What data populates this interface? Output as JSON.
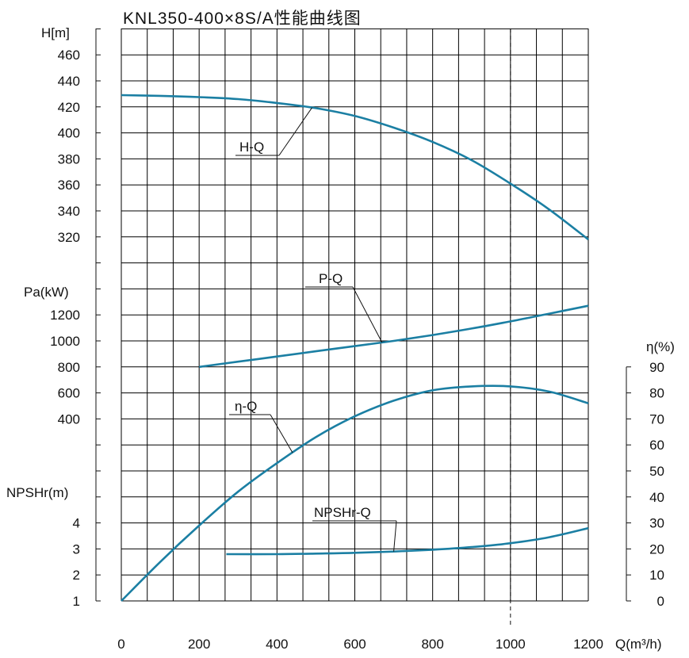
{
  "chart_data": {
    "type": "line",
    "title": "KNL350-400×8S/A性能曲线图",
    "grid": true,
    "curve_color": "#1b7fa3",
    "x": {
      "label": "Q(m³/h)",
      "range": [
        0,
        1200
      ],
      "ticks": [
        "0",
        "200",
        "400",
        "600",
        "800",
        "1000",
        "1200"
      ],
      "reference_line": 1000
    },
    "axes": {
      "head": {
        "label": "H[m]",
        "ticks": [
          "320",
          "340",
          "360",
          "380",
          "400",
          "420",
          "440",
          "460"
        ],
        "range": [
          320,
          460
        ]
      },
      "power": {
        "label": "Pa(kW)",
        "ticks": [
          "400",
          "600",
          "800",
          "1000",
          "1200"
        ],
        "range": [
          400,
          1200
        ]
      },
      "npsh": {
        "label": "NPSHr(m)",
        "ticks": [
          "1",
          "2",
          "3",
          "4"
        ],
        "range": [
          1,
          4
        ]
      },
      "efficiency": {
        "label": "η(%)",
        "ticks": [
          "0",
          "10",
          "20",
          "30",
          "40",
          "50",
          "60",
          "70",
          "80",
          "90"
        ],
        "range": [
          0,
          90
        ]
      }
    },
    "series": [
      {
        "name": "H-Q",
        "axis": "head",
        "x": [
          0,
          100,
          200,
          300,
          400,
          500,
          600,
          700,
          800,
          900,
          1000,
          1100,
          1200
        ],
        "y": [
          429,
          428.5,
          427.5,
          426,
          423,
          419,
          413,
          404,
          393,
          379,
          361,
          341,
          318
        ]
      },
      {
        "name": "P-Q",
        "axis": "power",
        "x": [
          200,
          300,
          400,
          500,
          600,
          700,
          800,
          900,
          1000,
          1100,
          1200
        ],
        "y": [
          800,
          840,
          880,
          920,
          960,
          1000,
          1045,
          1095,
          1150,
          1210,
          1270
        ]
      },
      {
        "name": "η-Q",
        "axis": "efficiency",
        "x": [
          0,
          100,
          200,
          300,
          400,
          500,
          600,
          700,
          800,
          900,
          1000,
          1100,
          1200
        ],
        "y": [
          0,
          15,
          29,
          42,
          53,
          63,
          71,
          77,
          81,
          82.5,
          82.5,
          80.5,
          76
        ]
      },
      {
        "name": "NPSHr-Q",
        "axis": "npsh",
        "x": [
          270,
          400,
          500,
          600,
          700,
          800,
          900,
          1000,
          1100,
          1200
        ],
        "y": [
          2.8,
          2.8,
          2.82,
          2.85,
          2.9,
          2.97,
          3.07,
          3.22,
          3.45,
          3.8
        ]
      }
    ]
  }
}
